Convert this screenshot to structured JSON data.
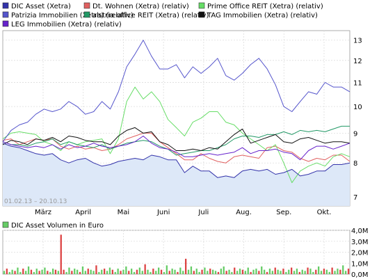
{
  "chart_data": [
    {
      "type": "line",
      "legend": {
        "placement": "top-left",
        "columns": 3
      },
      "x_tick_labels": [
        "März",
        "April",
        "Mai",
        "Juni",
        "Juli",
        "Aug.",
        "Sep.",
        "Okt."
      ],
      "y_tick_labels": [
        "7",
        "8",
        "9",
        "10",
        "11",
        "12",
        "13"
      ],
      "ylim": [
        6.75,
        13.5
      ],
      "y_scale": "log",
      "date_range_label": "01.02.13 – 20.10.13",
      "grid": true,
      "series": [
        {
          "name": "DIC Asset (Xetra)",
          "color": "#3333aa",
          "fill": "#dde8f8",
          "filled": true,
          "values": [
            8.65,
            8.55,
            8.5,
            8.4,
            8.3,
            8.25,
            8.3,
            8.1,
            8.0,
            8.1,
            8.15,
            8.0,
            7.9,
            7.95,
            8.05,
            8.1,
            8.15,
            8.1,
            8.25,
            8.2,
            8.1,
            8.1,
            7.7,
            7.9,
            7.75,
            7.75,
            7.55,
            7.6,
            7.55,
            7.75,
            7.8,
            7.75,
            7.8,
            7.65,
            7.7,
            7.8,
            7.6,
            7.65,
            7.75,
            7.75,
            7.95,
            7.95,
            8.0
          ]
        },
        {
          "name": "Dt. Wohnen (Xetra) (relativ)",
          "color": "#e06060",
          "filled": false,
          "values": [
            8.75,
            8.8,
            8.6,
            8.7,
            8.8,
            8.75,
            8.8,
            8.55,
            8.45,
            8.55,
            8.45,
            8.5,
            8.4,
            8.45,
            8.6,
            8.8,
            8.9,
            9.0,
            9.0,
            8.7,
            8.5,
            8.3,
            8.1,
            8.1,
            8.3,
            8.15,
            8.05,
            8.0,
            8.2,
            8.25,
            8.2,
            8.15,
            8.5,
            8.55,
            8.4,
            8.35,
            8.15,
            8.05,
            8.15,
            8.1,
            8.25,
            8.25,
            8.05
          ]
        },
        {
          "name": "Prime Office REIT (Xetra) (relativ)",
          "color": "#66dd66",
          "filled": false,
          "values": [
            8.8,
            9.0,
            9.05,
            9.0,
            8.95,
            8.7,
            8.6,
            8.4,
            8.7,
            8.6,
            8.7,
            8.75,
            8.8,
            8.3,
            8.8,
            10.2,
            10.8,
            10.3,
            10.6,
            10.2,
            9.5,
            9.2,
            8.9,
            9.4,
            9.55,
            9.8,
            9.8,
            9.4,
            9.3,
            9.0,
            8.8,
            8.6,
            8.4,
            8.6,
            8.0,
            7.4,
            7.75,
            7.9,
            8.0,
            7.9,
            8.2,
            8.3,
            8.2
          ]
        },
        {
          "name": "Patrizia Immobilien (Xetra) (relativ)",
          "color": "#5555cc",
          "filled": false,
          "values": [
            8.7,
            9.1,
            9.3,
            9.4,
            9.7,
            9.9,
            9.8,
            9.9,
            10.2,
            10.0,
            9.7,
            9.8,
            10.2,
            9.9,
            10.6,
            11.7,
            12.3,
            13.0,
            12.2,
            11.6,
            11.6,
            11.8,
            11.2,
            11.7,
            11.4,
            11.7,
            12.1,
            11.3,
            11.1,
            11.4,
            11.8,
            12.1,
            11.6,
            10.9,
            10.0,
            9.8,
            10.2,
            10.6,
            10.5,
            11.0,
            10.8,
            10.8,
            10.6
          ]
        },
        {
          "name": "alstria office REIT (Xetra) (relativ)",
          "color": "#229966",
          "filled": false,
          "values": [
            8.7,
            8.6,
            8.6,
            8.55,
            8.65,
            8.7,
            8.8,
            8.6,
            8.7,
            8.6,
            8.55,
            8.5,
            8.6,
            8.45,
            8.55,
            8.65,
            8.7,
            8.75,
            8.7,
            8.55,
            8.45,
            8.25,
            8.3,
            8.35,
            8.4,
            8.4,
            8.5,
            8.6,
            8.8,
            8.9,
            8.9,
            8.85,
            8.95,
            8.95,
            9.05,
            8.95,
            9.1,
            9.05,
            9.1,
            9.05,
            9.15,
            9.25,
            9.25
          ]
        },
        {
          "name": "TAG Immobilien (Xetra) (relativ)",
          "color": "#111111",
          "filled": false,
          "values": [
            8.6,
            8.75,
            8.7,
            8.6,
            8.8,
            8.75,
            8.85,
            8.7,
            8.9,
            8.85,
            8.75,
            8.7,
            8.7,
            8.6,
            8.9,
            9.1,
            9.2,
            9.0,
            9.05,
            8.7,
            8.6,
            8.4,
            8.4,
            8.45,
            8.4,
            8.5,
            8.45,
            8.7,
            8.95,
            9.15,
            8.65,
            8.75,
            8.85,
            8.95,
            8.7,
            8.65,
            8.8,
            8.85,
            8.75,
            8.65,
            8.7,
            8.7,
            8.65
          ]
        },
        {
          "name": "LEG Immobilien (Xetra) (relativ)",
          "color": "#6622cc",
          "filled": false,
          "values": [
            8.7,
            8.6,
            8.55,
            8.5,
            8.55,
            8.5,
            8.6,
            8.45,
            8.6,
            8.5,
            8.55,
            8.65,
            8.55,
            8.5,
            8.55,
            8.6,
            8.7,
            8.9,
            8.65,
            8.5,
            8.45,
            8.35,
            8.2,
            8.2,
            8.25,
            8.3,
            8.25,
            8.3,
            8.35,
            8.5,
            8.3,
            8.4,
            8.4,
            8.45,
            8.35,
            8.3,
            8.1,
            8.4,
            8.55,
            8.55,
            8.45,
            8.55,
            8.65
          ]
        }
      ]
    },
    {
      "type": "bar",
      "legend": {
        "placement": "top-left"
      },
      "series": [
        {
          "name": "DIC Asset Volumen in Euro",
          "color": "#66cc66",
          "highlight_color": "#dd4444",
          "values": [
            0.3,
            0.5,
            0.2,
            0.4,
            0.3,
            0.6,
            0.2,
            0.5,
            0.3,
            0.7,
            0.4,
            0.2,
            0.5,
            0.3,
            0.4,
            0.6,
            0.3,
            0.2,
            0.5,
            0.4,
            0.3,
            3.6,
            0.4,
            0.2,
            0.6,
            0.3,
            0.5,
            0.4,
            0.2,
            0.7,
            0.3,
            0.5,
            0.4,
            0.3,
            0.8,
            0.2,
            0.4,
            0.5,
            0.3,
            0.6,
            0.4,
            0.2,
            0.5,
            0.3,
            0.4,
            0.7,
            0.3,
            0.5,
            0.2,
            0.4,
            0.6,
            0.3,
            0.9,
            0.4,
            0.2,
            0.5,
            0.3,
            0.6,
            0.4,
            0.2,
            0.8,
            0.3,
            0.5,
            0.4,
            0.2,
            0.6,
            0.3,
            1.4,
            0.4,
            0.7,
            0.3,
            0.5,
            0.2,
            0.4,
            0.6,
            0.3,
            0.5,
            0.4,
            0.3,
            0.2,
            0.5,
            0.7,
            0.3,
            0.4,
            0.2,
            0.6,
            0.3,
            0.5,
            0.4,
            0.3,
            0.6,
            0.2,
            0.4,
            0.5,
            0.3,
            0.7,
            0.4,
            0.2,
            0.5,
            0.3,
            0.6,
            0.4,
            0.3,
            0.5,
            0.2,
            0.4,
            0.6,
            0.3,
            0.5,
            0.2,
            0.4,
            0.3,
            0.6,
            0.5,
            0.2,
            0.4,
            0.7,
            0.3,
            0.5,
            0.4,
            0.2,
            0.6,
            0.3,
            0.5,
            0.4,
            0.8,
            0.3,
            0.5
          ]
        },
        {
          "name": "",
          "color": "#dd4444",
          "values": []
        }
      ],
      "y_tick_labels": [
        "0,0M",
        "1,0M",
        "2,0M",
        "3,0M",
        "4,0M"
      ],
      "ylim": [
        0,
        4.0
      ]
    }
  ]
}
